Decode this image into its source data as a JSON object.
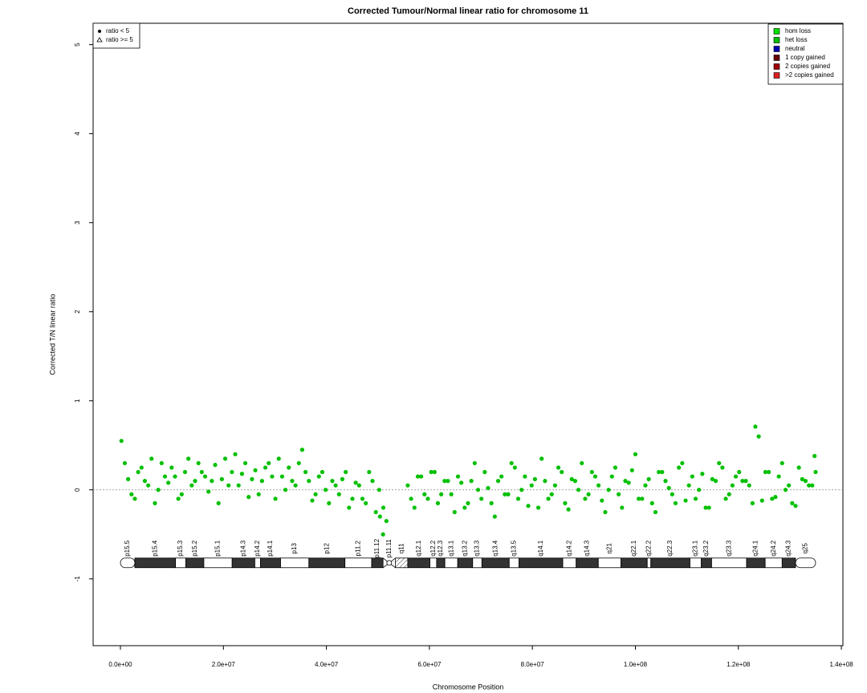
{
  "chart_data": {
    "type": "scatter",
    "title": "Corrected Tumour/Normal linear ratio for chromosome  11",
    "x_label": "Chromosome Position",
    "y_label": "Corrected T/N linear ratio",
    "xlim": [
      -5300000,
      140300000
    ],
    "ylim": [
      -1.75,
      5.24
    ],
    "xticks": [
      {
        "value": 0,
        "label": "0.0e+00"
      },
      {
        "value": 20000000,
        "label": "2.0e+07"
      },
      {
        "value": 40000000,
        "label": "4.0e+07"
      },
      {
        "value": 60000000,
        "label": "6.0e+07"
      },
      {
        "value": 80000000,
        "label": "8.0e+07"
      },
      {
        "value": 100000000,
        "label": "1.0e+08"
      },
      {
        "value": 120000000,
        "label": "1.2e+08"
      },
      {
        "value": 140000000,
        "label": "1.4e+08"
      }
    ],
    "yticks": [
      -1,
      0,
      1,
      2,
      3,
      4,
      5
    ],
    "hline": 0,
    "legend": "top-right",
    "shape_legend": [
      {
        "name": "ratio < 5",
        "symbol": "circle"
      },
      {
        "name": "ratio >= 5",
        "symbol": "triangle"
      }
    ],
    "series": [
      {
        "name": "hom loss",
        "color": "#00e000",
        "x": [],
        "values": []
      },
      {
        "name": "het loss",
        "color": "#00c000",
        "x": [
          200000,
          1500000,
          2800000,
          4100000,
          5400000,
          6700000,
          8000000,
          9300000,
          10600000,
          11900000,
          13200000,
          14500000,
          15800000,
          17100000,
          18400000,
          19700000,
          21000000,
          22300000,
          23600000,
          24900000,
          26200000,
          27500000,
          28800000,
          30100000,
          31400000,
          32700000,
          34000000,
          35300000,
          36600000,
          37900000,
          39200000,
          40500000,
          41800000,
          43100000,
          44400000,
          45700000,
          47000000,
          48300000,
          49600000,
          50400000,
          51000000,
          55800000,
          57100000,
          58400000,
          59700000,
          61000000,
          62300000,
          63600000,
          64900000,
          66200000,
          67500000,
          68800000,
          70100000,
          71400000,
          72700000,
          74000000,
          75300000,
          76600000,
          77900000,
          79200000,
          80500000,
          81800000,
          83100000,
          84400000,
          85700000,
          87000000,
          88300000,
          89600000,
          90900000,
          92200000,
          93500000,
          94800000,
          96100000,
          97400000,
          98700000,
          100000000,
          101300000,
          102600000,
          103900000,
          105200000,
          106500000,
          107800000,
          109100000,
          110400000,
          111700000,
          113000000,
          114300000,
          115600000,
          116900000,
          118200000,
          119500000,
          120800000,
          122100000,
          123300000,
          124600000,
          125900000,
          127200000,
          128500000,
          129800000,
          131100000,
          132400000,
          133700000,
          134800000,
          850000,
          2150000,
          3450000,
          4750000,
          6050000,
          7350000,
          8650000,
          9950000,
          11250000,
          12550000,
          13850000,
          15150000,
          16450000,
          17750000,
          19050000,
          20350000,
          21650000,
          22950000,
          24250000,
          25550000,
          26850000,
          28150000,
          29450000,
          30750000,
          32050000,
          33350000,
          34650000,
          35950000,
          37250000,
          38550000,
          39850000,
          41150000,
          42450000,
          43750000,
          45050000,
          46350000,
          47650000,
          48950000,
          50250000,
          51050000,
          51650000,
          56450000,
          57750000,
          59050000,
          60350000,
          61650000,
          62950000,
          64250000,
          65550000,
          66850000,
          68150000,
          69450000,
          70750000,
          72050000,
          73350000,
          74650000,
          75950000,
          77250000,
          78550000,
          79850000,
          81150000,
          82450000,
          83750000,
          85050000,
          86350000,
          87650000,
          88950000,
          90250000,
          91550000,
          92850000,
          94150000,
          95450000,
          96750000,
          98050000,
          99350000,
          100650000,
          101950000,
          103250000,
          104550000,
          105850000,
          107150000,
          108450000,
          109750000,
          111050000,
          112350000,
          113650000,
          114950000,
          116250000,
          117550000,
          118850000,
          120150000,
          121450000,
          122750000,
          123950000,
          125250000,
          126550000,
          127850000,
          129150000,
          130450000,
          131750000,
          133050000,
          134350000,
          135000000
        ],
        "values": [
          0.55,
          0.12,
          -0.1,
          0.25,
          0.05,
          -0.15,
          0.3,
          0.08,
          0.15,
          -0.05,
          0.35,
          0.1,
          0.2,
          -0.02,
          0.28,
          0.12,
          0.05,
          0.4,
          0.18,
          -0.08,
          0.22,
          0.1,
          0.3,
          -0.1,
          0.15,
          0.25,
          0.05,
          0.45,
          0.1,
          -0.05,
          0.2,
          -0.15,
          0.05,
          0.12,
          -0.2,
          0.08,
          -0.1,
          0.2,
          -0.25,
          -0.3,
          -0.5,
          0.05,
          -0.2,
          0.15,
          -0.1,
          0.2,
          -0.05,
          0.1,
          -0.25,
          0.08,
          -0.15,
          0.3,
          -0.1,
          0.02,
          -0.3,
          0.15,
          -0.05,
          0.25,
          0.0,
          -0.18,
          0.12,
          0.35,
          -0.1,
          0.05,
          0.2,
          -0.22,
          0.1,
          0.3,
          -0.05,
          0.15,
          -0.12,
          0.0,
          0.25,
          -0.2,
          0.08,
          0.4,
          -0.1,
          0.12,
          -0.25,
          0.2,
          0.02,
          -0.15,
          0.3,
          0.05,
          -0.1,
          0.18,
          -0.2,
          0.1,
          0.25,
          -0.05,
          0.15,
          0.1,
          0.05,
          0.71,
          -0.12,
          0.2,
          -0.08,
          0.3,
          0.05,
          -0.18,
          0.12,
          0.05,
          0.38,
          0.3,
          -0.05,
          0.2,
          0.1,
          0.35,
          0.0,
          0.15,
          0.25,
          -0.1,
          0.2,
          0.05,
          0.3,
          0.15,
          0.1,
          -0.15,
          0.35,
          0.2,
          0.05,
          0.3,
          0.12,
          -0.05,
          0.25,
          0.15,
          0.35,
          0.0,
          0.1,
          0.3,
          0.2,
          -0.12,
          0.15,
          0.0,
          0.1,
          -0.05,
          0.2,
          -0.1,
          0.05,
          -0.15,
          0.1,
          0.0,
          -0.2,
          -0.35,
          -0.1,
          0.15,
          -0.05,
          0.2,
          -0.15,
          0.1,
          -0.05,
          0.15,
          -0.2,
          0.1,
          0.0,
          0.2,
          -0.15,
          0.1,
          -0.05,
          0.3,
          -0.1,
          0.15,
          0.05,
          -0.2,
          0.1,
          -0.05,
          0.25,
          -0.15,
          0.12,
          0.0,
          -0.1,
          0.2,
          0.05,
          -0.25,
          0.15,
          -0.05,
          0.1,
          0.22,
          -0.1,
          0.05,
          -0.15,
          0.2,
          0.1,
          -0.05,
          0.25,
          -0.12,
          0.15,
          0.0,
          -0.2,
          0.12,
          0.3,
          -0.1,
          0.05,
          0.2,
          0.1,
          -0.15,
          0.6,
          0.2,
          -0.1,
          0.15,
          0.0,
          -0.15,
          0.25,
          0.1,
          0.05,
          0.2
        ]
      },
      {
        "name": "neutral",
        "color": "#0000b0",
        "x": [],
        "values": []
      },
      {
        "name": "1 copy gained",
        "color": "#660000",
        "x": [],
        "values": []
      },
      {
        "name": "2 copies gained",
        "color": "#a00000",
        "x": [],
        "values": []
      },
      {
        "name": ">2 copies gained",
        "color": "#dd2020",
        "x": [],
        "values": []
      }
    ],
    "ideogram_y": -0.82,
    "bands": [
      {
        "name": "p15.5",
        "start": 0,
        "end": 2800000,
        "stain": "gneg"
      },
      {
        "name": "p15.4",
        "start": 2800000,
        "end": 10700000,
        "stain": "gpos"
      },
      {
        "name": "p15.3",
        "start": 10700000,
        "end": 12700000,
        "stain": "gneg"
      },
      {
        "name": "p15.2",
        "start": 12700000,
        "end": 16200000,
        "stain": "gpos"
      },
      {
        "name": "p15.1",
        "start": 16200000,
        "end": 21700000,
        "stain": "gneg"
      },
      {
        "name": "p14.3",
        "start": 21700000,
        "end": 26100000,
        "stain": "gpos"
      },
      {
        "name": "p14.2",
        "start": 26100000,
        "end": 27200000,
        "stain": "gneg"
      },
      {
        "name": "p14.1",
        "start": 27200000,
        "end": 31100000,
        "stain": "gpos"
      },
      {
        "name": "p13",
        "start": 31100000,
        "end": 36600000,
        "stain": "gneg"
      },
      {
        "name": "p12",
        "start": 36600000,
        "end": 43600000,
        "stain": "gpos"
      },
      {
        "name": "p11.2",
        "start": 43600000,
        "end": 48800000,
        "stain": "gneg"
      },
      {
        "name": "p11.12",
        "start": 48800000,
        "end": 51000000,
        "stain": "gpos"
      },
      {
        "name": "p11.11",
        "start": 51000000,
        "end": 53400000,
        "stain": "acen"
      },
      {
        "name": "q11",
        "start": 53400000,
        "end": 55800000,
        "stain": "gvar"
      },
      {
        "name": "q12.1",
        "start": 55800000,
        "end": 60100000,
        "stain": "gpos"
      },
      {
        "name": "q12.2",
        "start": 60100000,
        "end": 61400000,
        "stain": "gneg"
      },
      {
        "name": "q12.3",
        "start": 61400000,
        "end": 63000000,
        "stain": "gpos"
      },
      {
        "name": "q13.1",
        "start": 63000000,
        "end": 65500000,
        "stain": "gneg"
      },
      {
        "name": "q13.2",
        "start": 65500000,
        "end": 68400000,
        "stain": "gpos"
      },
      {
        "name": "q13.3",
        "start": 68400000,
        "end": 70200000,
        "stain": "gneg"
      },
      {
        "name": "q13.4",
        "start": 70200000,
        "end": 75500000,
        "stain": "gpos"
      },
      {
        "name": "q13.5",
        "start": 75500000,
        "end": 77400000,
        "stain": "gneg"
      },
      {
        "name": "q14.1",
        "start": 77400000,
        "end": 85900000,
        "stain": "gpos"
      },
      {
        "name": "q14.2",
        "start": 85900000,
        "end": 88500000,
        "stain": "gneg"
      },
      {
        "name": "q14.3",
        "start": 88500000,
        "end": 92800000,
        "stain": "gpos"
      },
      {
        "name": "q21",
        "start": 92800000,
        "end": 97200000,
        "stain": "gneg"
      },
      {
        "name": "q22.1",
        "start": 97200000,
        "end": 102300000,
        "stain": "gpos"
      },
      {
        "name": "q22.2",
        "start": 102300000,
        "end": 103000000,
        "stain": "gneg"
      },
      {
        "name": "q22.3",
        "start": 103000000,
        "end": 110600000,
        "stain": "gpos"
      },
      {
        "name": "q23.1",
        "start": 110600000,
        "end": 112800000,
        "stain": "gneg"
      },
      {
        "name": "q23.2",
        "start": 112800000,
        "end": 114800000,
        "stain": "gpos"
      },
      {
        "name": "q23.3",
        "start": 114800000,
        "end": 121600000,
        "stain": "gneg"
      },
      {
        "name": "q24.1",
        "start": 121600000,
        "end": 125200000,
        "stain": "gpos"
      },
      {
        "name": "q24.2",
        "start": 125200000,
        "end": 128500000,
        "stain": "gneg"
      },
      {
        "name": "q24.3",
        "start": 128500000,
        "end": 131100000,
        "stain": "gpos"
      },
      {
        "name": "q25",
        "start": 131100000,
        "end": 135000000,
        "stain": "gneg"
      }
    ]
  }
}
